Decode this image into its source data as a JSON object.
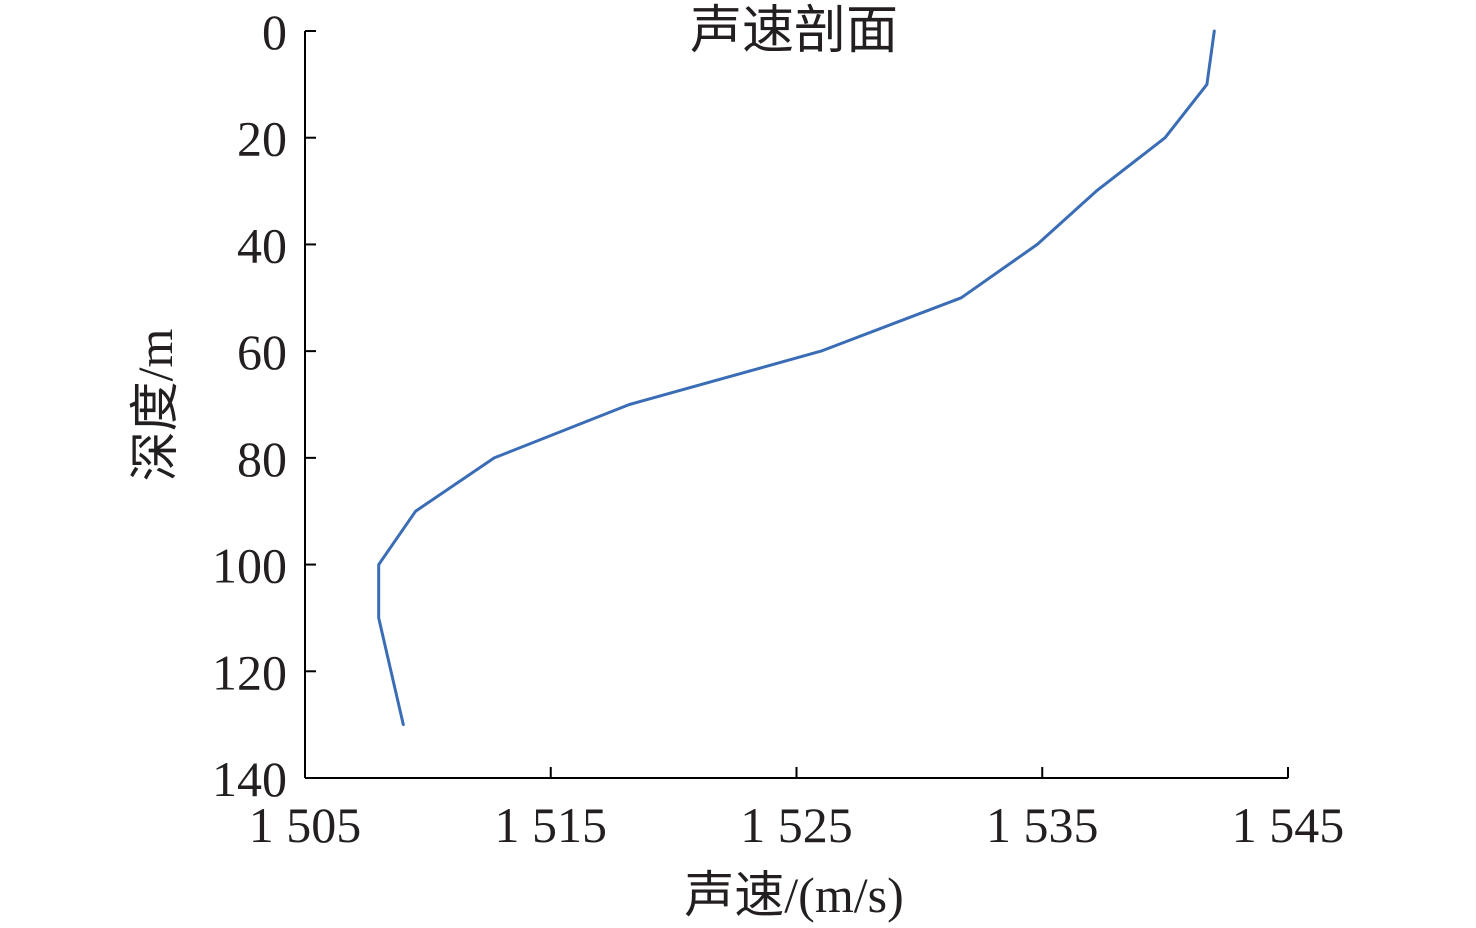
{
  "chart_data": {
    "type": "line",
    "title": "声速剖面",
    "xlabel": "声速/(m/s)",
    "ylabel": "深度/m",
    "xlim": [
      1505,
      1545
    ],
    "ylim": [
      0,
      140
    ],
    "y_inverted": true,
    "x_ticks": [
      1505,
      1515,
      1525,
      1535,
      1545
    ],
    "x_tick_labels": [
      "1 505",
      "1 515",
      "1 525",
      "1 535",
      "1 545"
    ],
    "y_ticks": [
      0,
      20,
      40,
      60,
      80,
      100,
      120,
      140
    ],
    "y_tick_labels": [
      "0",
      "20",
      "40",
      "60",
      "80",
      "100",
      "120",
      "140"
    ],
    "grid": false,
    "legend": "none",
    "series": [
      {
        "color": "#3a6db5",
        "points": [
          {
            "x": 1542.0,
            "y": 0
          },
          {
            "x": 1541.7,
            "y": 10
          },
          {
            "x": 1540.0,
            "y": 20
          },
          {
            "x": 1537.2,
            "y": 30
          },
          {
            "x": 1534.8,
            "y": 40
          },
          {
            "x": 1531.7,
            "y": 50
          },
          {
            "x": 1526.0,
            "y": 60
          },
          {
            "x": 1518.2,
            "y": 70
          },
          {
            "x": 1512.7,
            "y": 80
          },
          {
            "x": 1509.5,
            "y": 90
          },
          {
            "x": 1508.0,
            "y": 100
          },
          {
            "x": 1508.0,
            "y": 110
          },
          {
            "x": 1508.5,
            "y": 120
          },
          {
            "x": 1509.0,
            "y": 130
          }
        ]
      }
    ]
  }
}
